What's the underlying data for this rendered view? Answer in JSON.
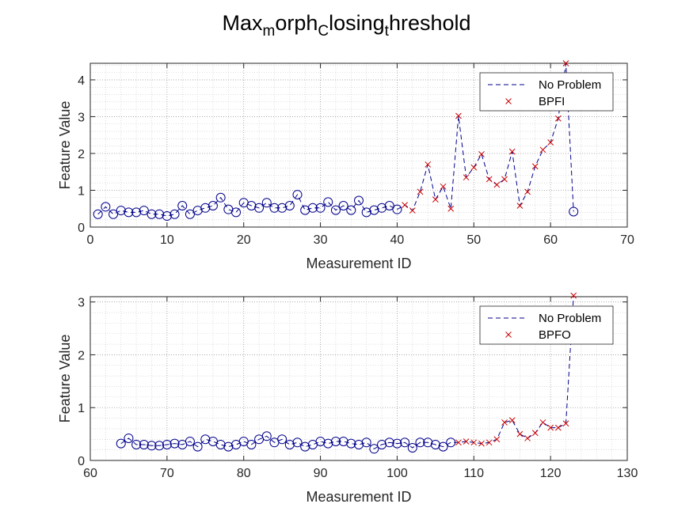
{
  "title": {
    "parts": [
      {
        "text": "Max",
        "sub": false
      },
      {
        "text": "m",
        "sub": true
      },
      {
        "text": "orph",
        "sub": false
      },
      {
        "text": "C",
        "sub": true
      },
      {
        "text": "losing",
        "sub": false
      },
      {
        "text": "t",
        "sub": true
      },
      {
        "text": "hreshold",
        "sub": false
      }
    ]
  },
  "colors": {
    "no_problem": "#00008B",
    "fault": "#CC0000",
    "grid": "#9a9a9a",
    "axis": "#262626"
  },
  "chart_data": [
    {
      "type": "line",
      "xlabel": "Measurement ID",
      "ylabel": "Feature Value",
      "xlim": [
        0,
        70
      ],
      "ylim": [
        0,
        4.45
      ],
      "xticks": [
        0,
        10,
        20,
        30,
        40,
        50,
        60,
        70
      ],
      "yticks": [
        0,
        1,
        2,
        3,
        4
      ],
      "grid": true,
      "minor_grid": true,
      "legend": {
        "placement": "top-right",
        "entries": [
          "No Problem",
          "BPFI"
        ]
      },
      "series": [
        {
          "name": "No Problem",
          "line_style": "dashed",
          "marker": "circle",
          "x": [
            1,
            2,
            3,
            4,
            5,
            6,
            7,
            8,
            9,
            10,
            11,
            12,
            13,
            14,
            15,
            16,
            17,
            18,
            19,
            20,
            21,
            22,
            23,
            24,
            25,
            26,
            27,
            28,
            29,
            30,
            31,
            32,
            33,
            34,
            35,
            36,
            37,
            38,
            39,
            40
          ],
          "y": [
            0.35,
            0.55,
            0.35,
            0.45,
            0.4,
            0.4,
            0.45,
            0.35,
            0.35,
            0.3,
            0.35,
            0.58,
            0.35,
            0.45,
            0.52,
            0.58,
            0.8,
            0.48,
            0.4,
            0.66,
            0.58,
            0.52,
            0.66,
            0.52,
            0.52,
            0.58,
            0.88,
            0.46,
            0.52,
            0.52,
            0.68,
            0.46,
            0.58,
            0.46,
            0.72,
            0.4,
            0.46,
            0.52,
            0.58,
            0.48
          ]
        },
        {
          "name": "BPFI",
          "line_style": "dashed",
          "marker": "x",
          "x": [
            41,
            42,
            43,
            44,
            45,
            46,
            47,
            48,
            49,
            50,
            51,
            52,
            53,
            54,
            55,
            56,
            57,
            58,
            59,
            60,
            61,
            62
          ],
          "y": [
            0.6,
            0.45,
            0.96,
            1.7,
            0.75,
            1.1,
            0.5,
            3.02,
            1.35,
            1.62,
            1.98,
            1.3,
            1.15,
            1.3,
            2.05,
            0.58,
            0.96,
            1.65,
            2.1,
            2.3,
            2.95,
            4.45
          ]
        },
        {
          "name": "No Problem",
          "line_style": "dashed",
          "marker": "circle",
          "x": [
            63
          ],
          "y": [
            0.42
          ]
        }
      ]
    },
    {
      "type": "line",
      "xlabel": "Measurement ID",
      "ylabel": "Feature Value",
      "xlim": [
        60,
        130
      ],
      "ylim": [
        0,
        3.1
      ],
      "xticks": [
        60,
        70,
        80,
        90,
        100,
        110,
        120,
        130
      ],
      "yticks": [
        0,
        1,
        2,
        3
      ],
      "grid": true,
      "minor_grid": true,
      "legend": {
        "placement": "top-right",
        "entries": [
          "No Problem",
          "BPFO"
        ]
      },
      "series": [
        {
          "name": "No Problem",
          "line_style": "dashed",
          "marker": "circle",
          "x": [
            64,
            65,
            66,
            67,
            68,
            69,
            70,
            71,
            72,
            73,
            74,
            75,
            76,
            77,
            78,
            79,
            80,
            81,
            82,
            83,
            84,
            85,
            86,
            87,
            88,
            89,
            90,
            91,
            92,
            93,
            94,
            95,
            96,
            97,
            98,
            99,
            100,
            101,
            102,
            103,
            104,
            105,
            106,
            107
          ],
          "y": [
            0.32,
            0.42,
            0.3,
            0.3,
            0.28,
            0.28,
            0.3,
            0.32,
            0.3,
            0.36,
            0.26,
            0.4,
            0.36,
            0.3,
            0.26,
            0.3,
            0.36,
            0.3,
            0.4,
            0.46,
            0.34,
            0.4,
            0.3,
            0.34,
            0.26,
            0.3,
            0.36,
            0.32,
            0.36,
            0.36,
            0.32,
            0.3,
            0.34,
            0.22,
            0.3,
            0.34,
            0.32,
            0.34,
            0.24,
            0.34,
            0.34,
            0.3,
            0.26,
            0.34
          ]
        },
        {
          "name": "BPFO",
          "line_style": "dashed",
          "marker": "x",
          "x": [
            108,
            109,
            110,
            111,
            112,
            113,
            114,
            115,
            116,
            117,
            118,
            119,
            120,
            121,
            122,
            123
          ],
          "y": [
            0.34,
            0.36,
            0.34,
            0.32,
            0.34,
            0.4,
            0.72,
            0.76,
            0.5,
            0.42,
            0.52,
            0.72,
            0.62,
            0.62,
            0.7,
            3.12
          ]
        }
      ]
    }
  ]
}
